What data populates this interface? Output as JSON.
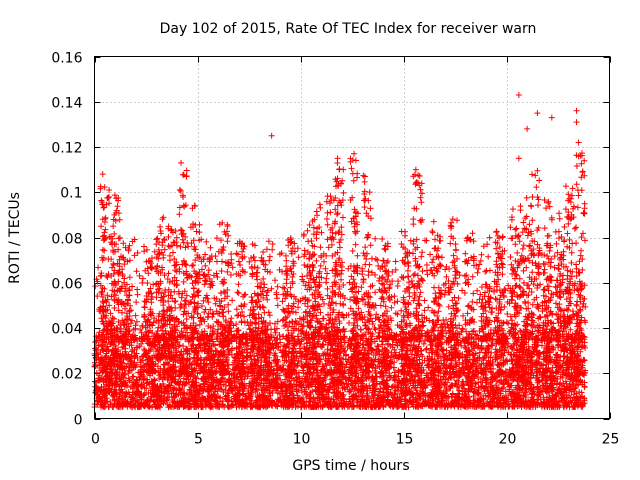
{
  "chart_data": {
    "type": "scatter",
    "title": "Day 102 of 2015, Rate Of TEC Index for receiver warn",
    "xlabel": "GPS time / hours",
    "ylabel": "ROTI / TECUs",
    "xlim": [
      0,
      25
    ],
    "ylim": [
      0,
      0.16
    ],
    "xticks": [
      0,
      5,
      10,
      15,
      20,
      25
    ],
    "yticks": [
      0,
      0.02,
      0.04,
      0.06,
      0.08,
      0.1,
      0.12,
      0.14,
      0.16
    ],
    "xtick_labels": [
      "0",
      "5",
      "10",
      "15",
      "20",
      "25"
    ],
    "ytick_labels": [
      "0",
      "0.02",
      "0.04",
      "0.06",
      "0.08",
      "0.1",
      "0.12",
      "0.14",
      "0.16"
    ],
    "grid": true,
    "marker": "+",
    "color": "#ff0000",
    "series": [
      {
        "name": "ROTI",
        "x_range": [
          0,
          23.8
        ],
        "core_band": [
          0.005,
          0.035
        ],
        "notable_points": [
          {
            "x": 8.6,
            "y": 0.125
          },
          {
            "x": 20.6,
            "y": 0.143
          },
          {
            "x": 21.0,
            "y": 0.128
          },
          {
            "x": 21.5,
            "y": 0.135
          },
          {
            "x": 22.2,
            "y": 0.133
          },
          {
            "x": 23.4,
            "y": 0.136
          },
          {
            "x": 23.4,
            "y": 0.131
          },
          {
            "x": 23.5,
            "y": 0.122
          },
          {
            "x": 11.8,
            "y": 0.115
          },
          {
            "x": 12.6,
            "y": 0.117
          },
          {
            "x": 4.2,
            "y": 0.113
          },
          {
            "x": 15.6,
            "y": 0.11
          },
          {
            "x": 0.4,
            "y": 0.108
          },
          {
            "x": 20.6,
            "y": 0.115
          }
        ],
        "peaks": [
          {
            "x": 0.5,
            "y": 0.105
          },
          {
            "x": 1.0,
            "y": 0.1
          },
          {
            "x": 1.5,
            "y": 0.075
          },
          {
            "x": 2.6,
            "y": 0.07
          },
          {
            "x": 3.2,
            "y": 0.09
          },
          {
            "x": 3.8,
            "y": 0.085
          },
          {
            "x": 4.3,
            "y": 0.11
          },
          {
            "x": 4.9,
            "y": 0.095
          },
          {
            "x": 5.5,
            "y": 0.072
          },
          {
            "x": 6.3,
            "y": 0.088
          },
          {
            "x": 7.1,
            "y": 0.078
          },
          {
            "x": 7.8,
            "y": 0.072
          },
          {
            "x": 8.3,
            "y": 0.072
          },
          {
            "x": 9.5,
            "y": 0.08
          },
          {
            "x": 10.3,
            "y": 0.086
          },
          {
            "x": 10.8,
            "y": 0.097
          },
          {
            "x": 11.5,
            "y": 0.1
          },
          {
            "x": 11.9,
            "y": 0.113
          },
          {
            "x": 12.6,
            "y": 0.115
          },
          {
            "x": 13.2,
            "y": 0.11
          },
          {
            "x": 14.2,
            "y": 0.078
          },
          {
            "x": 15.1,
            "y": 0.085
          },
          {
            "x": 15.7,
            "y": 0.108
          },
          {
            "x": 16.6,
            "y": 0.088
          },
          {
            "x": 17.4,
            "y": 0.09
          },
          {
            "x": 18.2,
            "y": 0.082
          },
          {
            "x": 19.0,
            "y": 0.06
          },
          {
            "x": 19.7,
            "y": 0.085
          },
          {
            "x": 20.4,
            "y": 0.093
          },
          {
            "x": 20.9,
            "y": 0.1
          },
          {
            "x": 21.4,
            "y": 0.11
          },
          {
            "x": 22.0,
            "y": 0.098
          },
          {
            "x": 22.6,
            "y": 0.093
          },
          {
            "x": 23.1,
            "y": 0.103
          },
          {
            "x": 23.6,
            "y": 0.118
          }
        ]
      }
    ]
  }
}
